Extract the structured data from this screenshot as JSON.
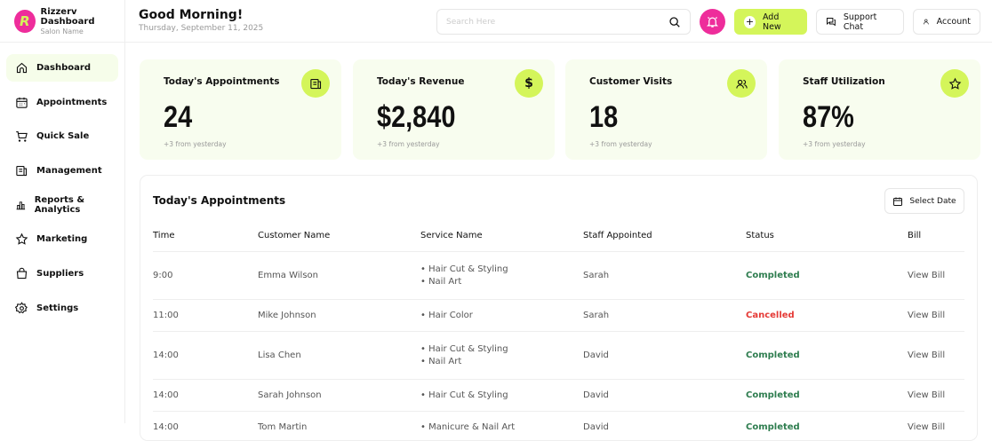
{
  "brand": {
    "title": "Rizzerv Dashboard",
    "subtitle": "Salon Name",
    "logo_letter": "R"
  },
  "sidebar": {
    "items": [
      {
        "label": "Dashboard",
        "icon": "home-icon",
        "active": true
      },
      {
        "label": "Appointments",
        "icon": "calendar-icon"
      },
      {
        "label": "Quick Sale",
        "icon": "cart-icon"
      },
      {
        "label": "Management",
        "icon": "clipboard-icon"
      },
      {
        "label": "Reports & Analytics",
        "icon": "bar-chart-icon"
      },
      {
        "label": "Marketing",
        "icon": "star-icon"
      },
      {
        "label": "Suppliers",
        "icon": "bag-icon"
      },
      {
        "label": "Settings",
        "icon": "gear-icon"
      }
    ]
  },
  "header": {
    "greeting": "Good Morning!",
    "date": "Thursday, September 11, 2025",
    "search_placeholder": "Search Here",
    "add_new": "Add New",
    "support_chat": "Support Chat",
    "account": "Account"
  },
  "cards": [
    {
      "title": "Today's Appointments",
      "value": "24",
      "sub": "+3 from yesterday",
      "icon": "clipboard-icon"
    },
    {
      "title": "Today's Revenue",
      "value": "$2,840",
      "sub": "+3 from yesterday",
      "icon": "dollar-icon"
    },
    {
      "title": "Customer Visits",
      "value": "18",
      "sub": "+3 from yesterday",
      "icon": "users-icon"
    },
    {
      "title": "Staff Utilization",
      "value": "87%",
      "sub": "+3 from yesterday",
      "icon": "star-icon"
    }
  ],
  "appointments": {
    "title": "Today's Appointments",
    "select_date": "Select Date",
    "columns": [
      "Time",
      "Customer Name",
      "Service Name",
      "Staff Appointed",
      "Status",
      "Bill"
    ],
    "rows": [
      {
        "time": "9:00",
        "customer": "Emma Wilson",
        "services": [
          "• Hair Cut & Styling",
          "• Nail Art"
        ],
        "staff": "Sarah",
        "status": "Completed",
        "bill": "View Bill"
      },
      {
        "time": "11:00",
        "customer": "Mike Johnson",
        "services": [
          "• Hair Color"
        ],
        "staff": "Sarah",
        "status": "Cancelled",
        "bill": "View Bill"
      },
      {
        "time": "14:00",
        "customer": "Lisa Chen",
        "services": [
          "• Hair Cut & Styling",
          "• Nail Art"
        ],
        "staff": "David",
        "status": "Completed",
        "bill": "View Bill"
      },
      {
        "time": "14:00",
        "customer": "Sarah Johnson",
        "services": [
          "• Hair Cut & Styling"
        ],
        "staff": "David",
        "status": "Completed",
        "bill": "View Bill"
      },
      {
        "time": "14:00",
        "customer": "Tom Martin",
        "services": [
          "• Manicure & Nail Art"
        ],
        "staff": "David",
        "status": "Completed",
        "bill": "View Bill"
      }
    ]
  },
  "colors": {
    "accent": "#d4f55a",
    "brand_pink": "#ee2d9b",
    "completed": "#2e7d4f",
    "cancelled": "#e53935"
  }
}
